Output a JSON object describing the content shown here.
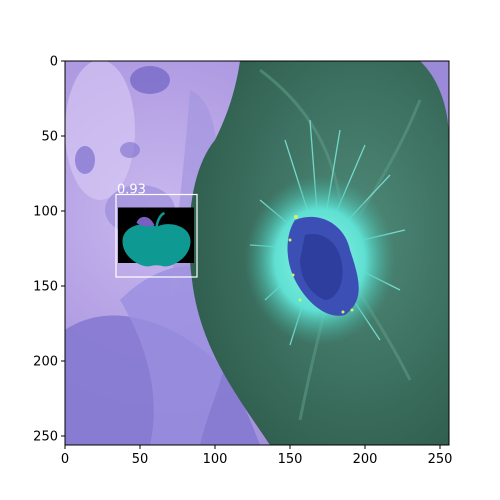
{
  "image": {
    "description_icon": "inverted-color-flower-photo",
    "palette": {
      "background_lavender": "#b9a6e6",
      "petal_violet": "#8a7fd6",
      "leaf_green": "#3f7462",
      "leaf_dark": "#2c5a4a",
      "center_cyan": "#5fe0d2",
      "center_blue": "#3c4fb4"
    }
  },
  "axes": {
    "x_ticks": [
      "0",
      "50",
      "100",
      "150",
      "200",
      "250"
    ],
    "y_ticks": [
      "0",
      "50",
      "100",
      "150",
      "200",
      "250"
    ],
    "xlim": [
      0,
      256
    ],
    "ylim": [
      256,
      0
    ]
  },
  "detection": {
    "score": "0.93",
    "icon": "apple-icon",
    "box": {
      "x0": 34,
      "y0": 89,
      "x1": 88,
      "y1": 144
    },
    "box_color": "#ffffff",
    "icon_color": "#0e9a92",
    "icon_bg": "#000000",
    "leaf_color": "#7b5fc0"
  }
}
